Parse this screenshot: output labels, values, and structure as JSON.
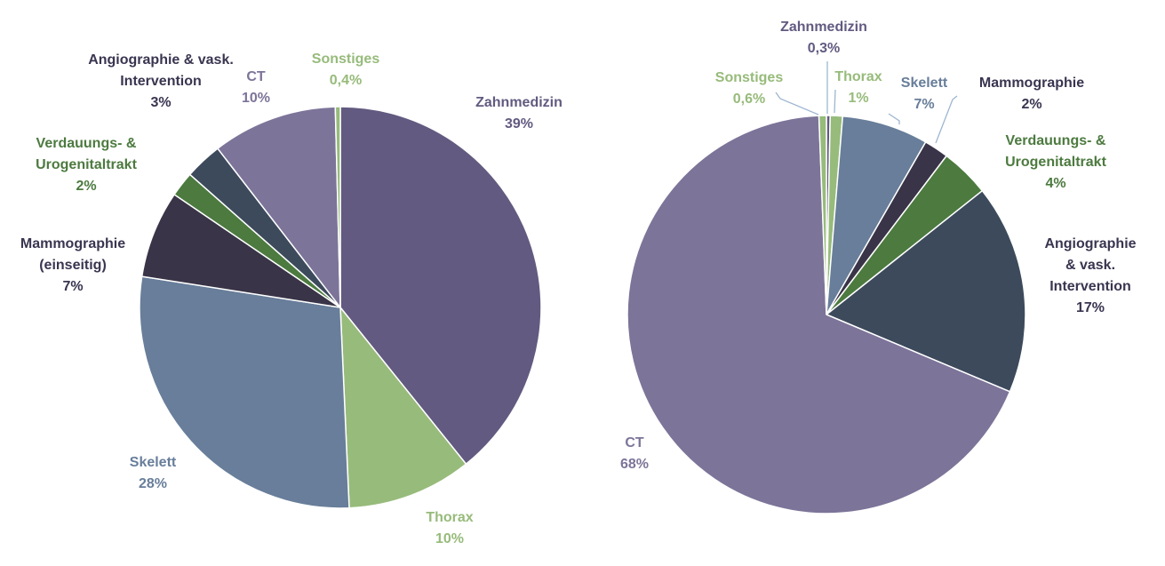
{
  "colors": {
    "zahnmedizin": "#625a80",
    "thorax": "#97bb7b",
    "skelett": "#687e9a",
    "mammographie": "#393447",
    "verdauung": "#4c7a3f",
    "angiographie": "#3c4a5c",
    "ct": "#7d7499",
    "sonstiges": "#97bb7b",
    "label_dark": "#3a3550",
    "label_green_light": "#97bb7b",
    "label_green_dark": "#4c7a3f",
    "label_blue": "#687e9a",
    "label_purple": "#7d7499",
    "label_zahn": "#625a80",
    "leader": "#9db6d0"
  },
  "chart_data": [
    {
      "type": "pie",
      "slices": [
        {
          "key": "zahnmedizin",
          "name": "Zahnmedizin",
          "value": 39,
          "label": "39%",
          "label_lines": [
            "Zahnmedizin",
            "39%"
          ],
          "color_key": "zahnmedizin",
          "label_color_key": "label_zahn"
        },
        {
          "key": "thorax",
          "name": "Thorax",
          "value": 10,
          "label": "10%",
          "label_lines": [
            "Thorax",
            "10%"
          ],
          "color_key": "thorax",
          "label_color_key": "label_green_light"
        },
        {
          "key": "skelett",
          "name": "Skelett",
          "value": 28,
          "label": "28%",
          "label_lines": [
            "Skelett",
            "28%"
          ],
          "color_key": "skelett",
          "label_color_key": "label_blue"
        },
        {
          "key": "mammographie",
          "name": "Mammographie (einseitig)",
          "value": 7,
          "label": "7%",
          "label_lines": [
            "Mammographie",
            "(einseitig)",
            "7%"
          ],
          "color_key": "mammographie",
          "label_color_key": "label_dark"
        },
        {
          "key": "verdauung",
          "name": "Verdauungs- & Urogenitaltrakt",
          "value": 2,
          "label": "2%",
          "label_lines": [
            "Verdauungs- &",
            "Urogenitaltrakt",
            "2%"
          ],
          "color_key": "verdauung",
          "label_color_key": "label_green_dark"
        },
        {
          "key": "angiographie",
          "name": "Angiographie & vask. Intervention",
          "value": 3,
          "label": "3%",
          "label_lines": [
            "Angiographie & vask.",
            "Intervention",
            "3%"
          ],
          "color_key": "angiographie",
          "label_color_key": "label_dark"
        },
        {
          "key": "ct",
          "name": "CT",
          "value": 10,
          "label": "10%",
          "label_lines": [
            "CT",
            "10%"
          ],
          "color_key": "ct",
          "label_color_key": "label_purple"
        },
        {
          "key": "sonstiges",
          "name": "Sonstiges",
          "value": 0.4,
          "label": "0,4%",
          "label_lines": [
            "Sonstiges",
            "0,4%"
          ],
          "color_key": "sonstiges",
          "label_color_key": "label_green_light"
        }
      ]
    },
    {
      "type": "pie",
      "slices": [
        {
          "key": "zahnmedizin",
          "name": "Zahnmedizin",
          "value": 0.3,
          "label": "0,3%",
          "label_lines": [
            "Zahnmedizin",
            "0,3%"
          ],
          "color_key": "zahnmedizin",
          "label_color_key": "label_zahn"
        },
        {
          "key": "thorax",
          "name": "Thorax",
          "value": 1,
          "label": "1%",
          "label_lines": [
            "Thorax",
            "1%"
          ],
          "color_key": "thorax",
          "label_color_key": "label_green_light"
        },
        {
          "key": "skelett",
          "name": "Skelett",
          "value": 7,
          "label": "7%",
          "label_lines": [
            "Skelett",
            "7%"
          ],
          "color_key": "skelett",
          "label_color_key": "label_blue"
        },
        {
          "key": "mammographie",
          "name": "Mammographie",
          "value": 2,
          "label": "2%",
          "label_lines": [
            "Mammographie",
            "2%"
          ],
          "color_key": "mammographie",
          "label_color_key": "label_dark"
        },
        {
          "key": "verdauung",
          "name": "Verdauungs- & Urogenitaltrakt",
          "value": 4,
          "label": "4%",
          "label_lines": [
            "Verdauungs- &",
            "Urogenitaltrakt",
            "4%"
          ],
          "color_key": "verdauung",
          "label_color_key": "label_green_dark"
        },
        {
          "key": "angiographie",
          "name": "Angiographie & vask. Intervention",
          "value": 17,
          "label": "17%",
          "label_lines": [
            "Angiographie",
            "& vask.",
            "Intervention",
            "17%"
          ],
          "color_key": "angiographie",
          "label_color_key": "label_dark"
        },
        {
          "key": "ct",
          "name": "CT",
          "value": 68,
          "label": "68%",
          "label_lines": [
            "CT",
            "68%"
          ],
          "color_key": "ct",
          "label_color_key": "label_purple"
        },
        {
          "key": "sonstiges",
          "name": "Sonstiges",
          "value": 0.6,
          "label": "0,6%",
          "label_lines": [
            "Sonstiges",
            "0,6%"
          ],
          "color_key": "sonstiges",
          "label_color_key": "label_green_light"
        }
      ]
    }
  ]
}
